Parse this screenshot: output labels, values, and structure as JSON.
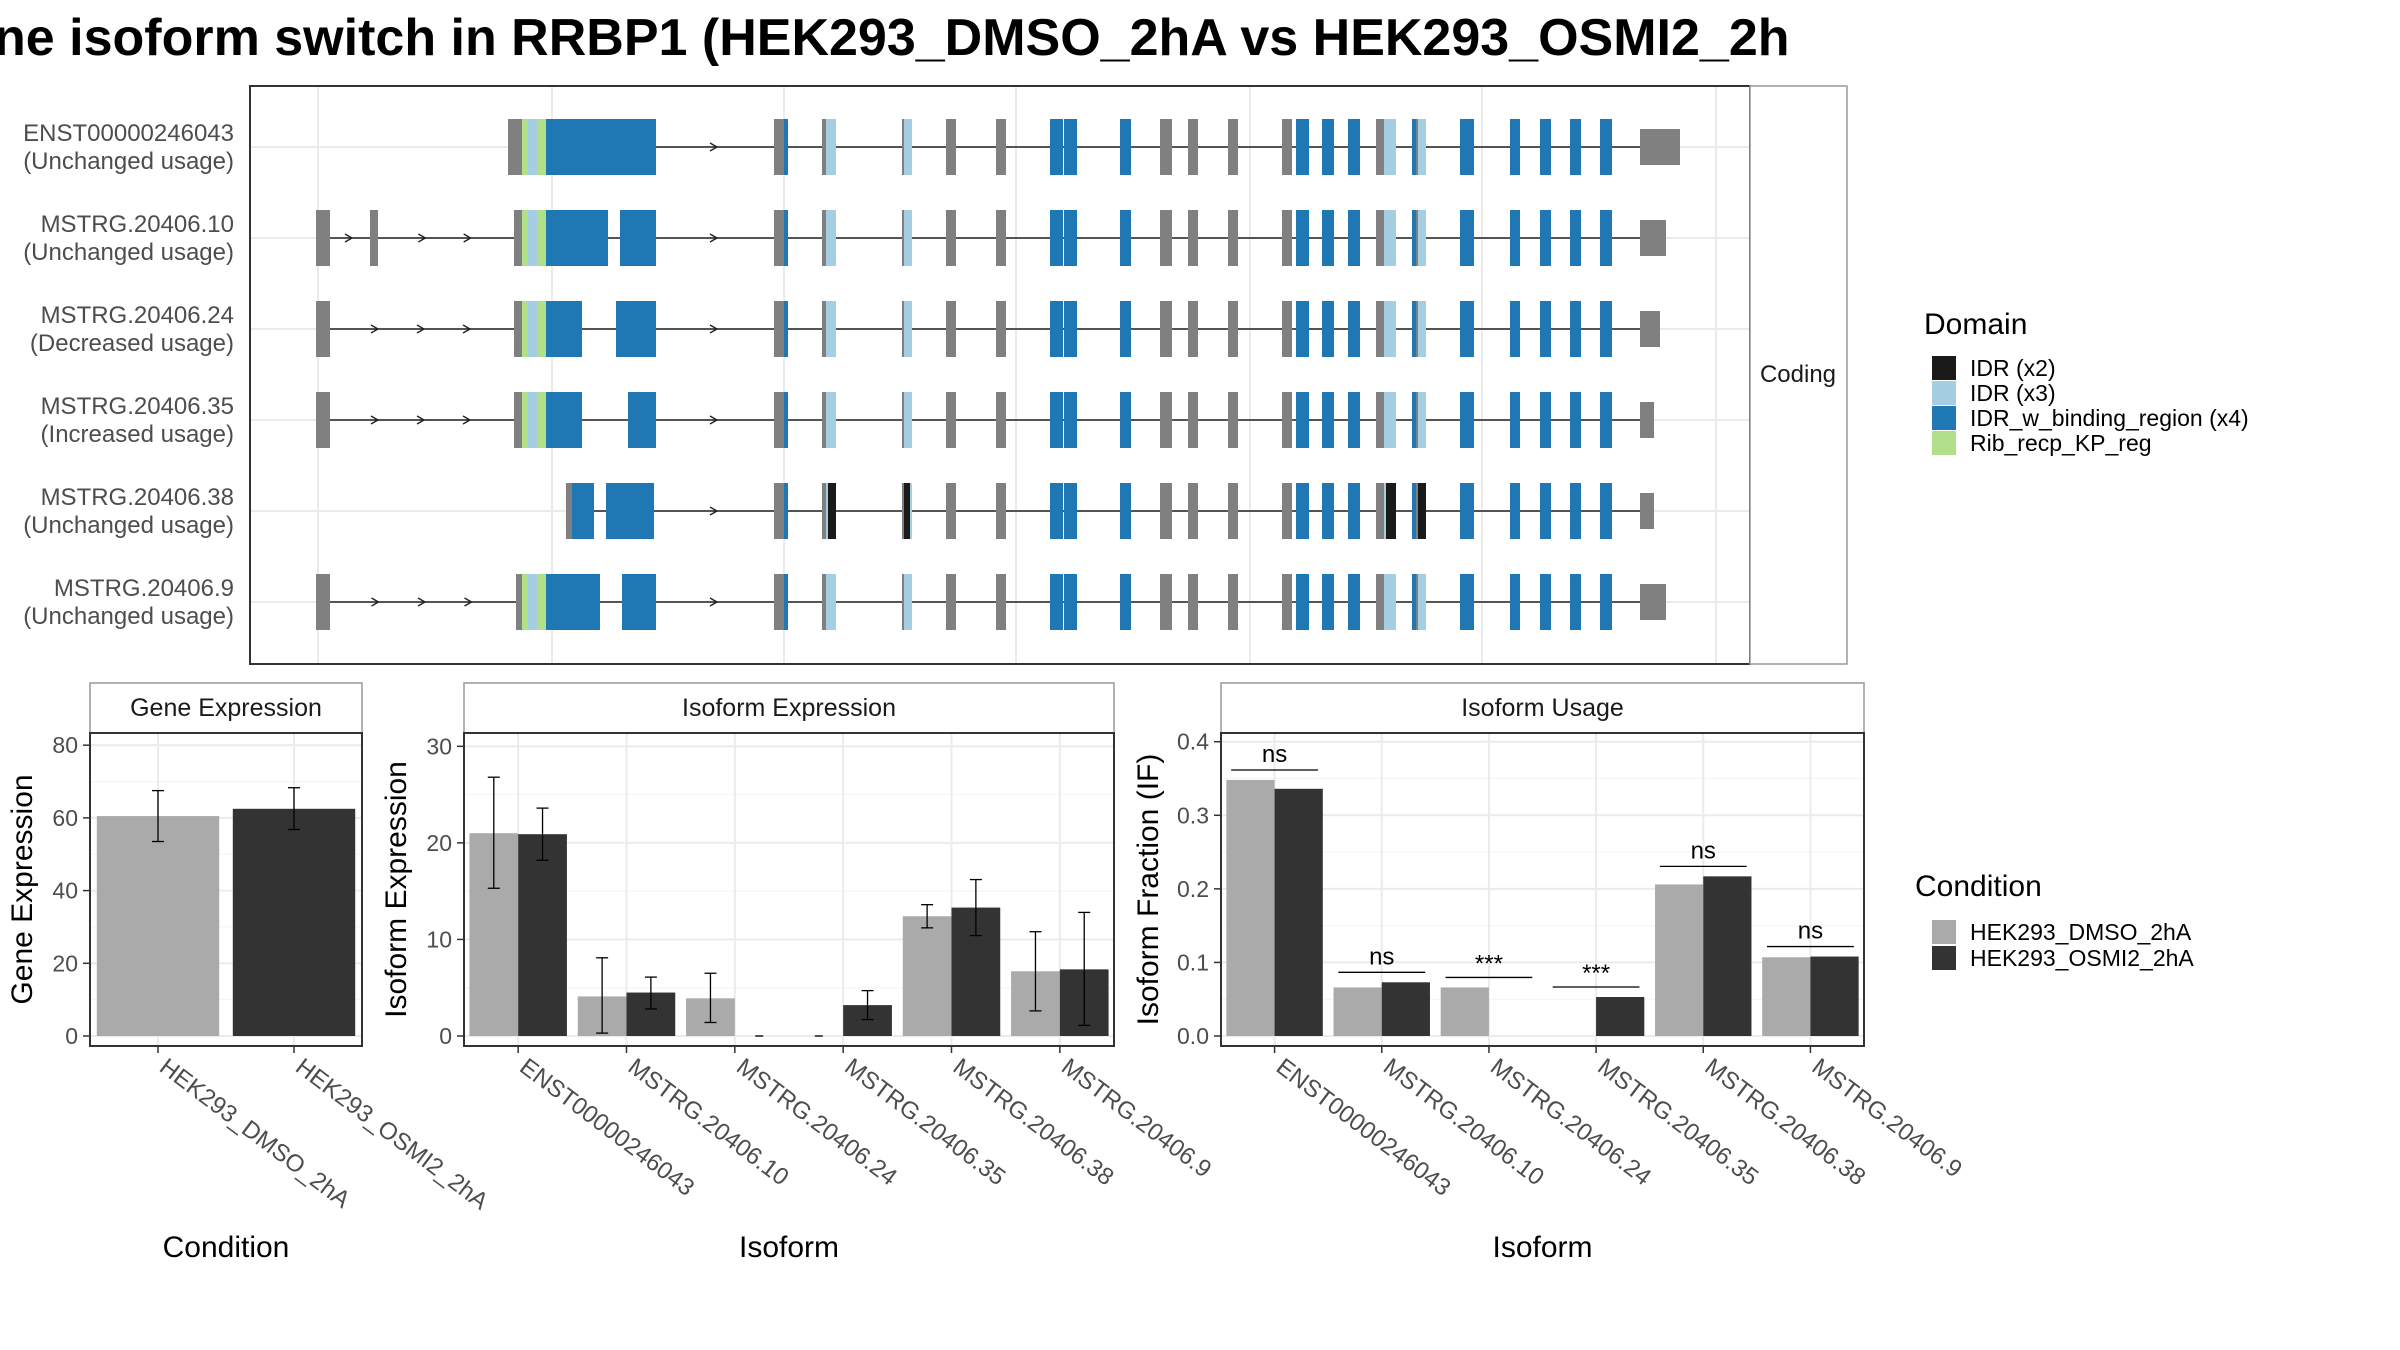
{
  "title": "ne isoform switch in RRBP1 (HEK293_DMSO_2hA vs HEK293_OSMI2_2h",
  "colors": {
    "dmso": "#aaaaaa",
    "osmi": "#333333",
    "exon_plain": "#808080",
    "idr_x2": "#1a1a1a",
    "idr_x3": "#a6cee3",
    "idr_binding": "#1f78b4",
    "rib_kp": "#b2df8a",
    "grid": "#ebebeb",
    "panel_border": "#333333"
  },
  "chart_data": [
    {
      "type": "gene-structure",
      "strip_label": "Coding",
      "legend": {
        "title": "Domain",
        "items": [
          {
            "label": "IDR (x2)",
            "color": "#1a1a1a"
          },
          {
            "label": "IDR (x3)",
            "color": "#a6cee3"
          },
          {
            "label": "IDR_w_binding_region (x4)",
            "color": "#1f78b4"
          },
          {
            "label": "Rib_recp_KP_reg",
            "color": "#b2df8a"
          }
        ]
      },
      "isoforms": [
        {
          "id": "ENST00000246043",
          "status": "(Unchanged usage)"
        },
        {
          "id": "MSTRG.20406.10",
          "status": "(Unchanged usage)"
        },
        {
          "id": "MSTRG.20406.24",
          "status": "(Decreased usage)"
        },
        {
          "id": "MSTRG.20406.35",
          "status": "(Increased usage)"
        },
        {
          "id": "MSTRG.20406.38",
          "status": "(Unchanged usage)"
        },
        {
          "id": "MSTRG.20406.9",
          "status": "(Unchanged usage)"
        }
      ]
    },
    {
      "type": "bar",
      "title": "Gene Expression",
      "xlabel": "Condition",
      "ylabel": "Gene Expression",
      "ylim": [
        0,
        85
      ],
      "yticks": [
        0,
        20,
        40,
        60,
        80
      ],
      "categories": [
        "HEK293_DMSO_2hA",
        "HEK293_OSMI2_2hA"
      ],
      "values": [
        60.5,
        62.5
      ],
      "errors": [
        [
          53.5,
          67.5
        ],
        [
          56.8,
          68.3
        ]
      ]
    },
    {
      "type": "bar",
      "title": "Isoform Expression",
      "xlabel": "Isoform",
      "ylabel": "Isoform Expression",
      "ylim": [
        0,
        32
      ],
      "yticks": [
        0,
        10,
        20,
        30
      ],
      "categories": [
        "ENST00000246043",
        "MSTRG.20406.10",
        "MSTRG.20406.24",
        "MSTRG.20406.35",
        "MSTRG.20406.38",
        "MSTRG.20406.9"
      ],
      "series": [
        {
          "name": "HEK293_DMSO_2hA",
          "values": [
            21.0,
            4.1,
            3.9,
            0.0,
            12.4,
            6.7
          ],
          "errors": [
            [
              15.3,
              26.8
            ],
            [
              0.3,
              8.1
            ],
            [
              1.4,
              6.5
            ],
            [
              0.0,
              0.0
            ],
            [
              11.2,
              13.6
            ],
            [
              2.6,
              10.8
            ]
          ]
        },
        {
          "name": "HEK293_OSMI2_2hA",
          "values": [
            20.9,
            4.5,
            0.0,
            3.2,
            13.3,
            6.9
          ],
          "errors": [
            [
              18.2,
              23.6
            ],
            [
              2.8,
              6.1
            ],
            [
              0.0,
              0.0
            ],
            [
              1.7,
              4.7
            ],
            [
              10.4,
              16.2
            ],
            [
              1.1,
              12.8
            ]
          ]
        }
      ]
    },
    {
      "type": "bar",
      "title": "Isoform Usage",
      "xlabel": "Isoform",
      "ylabel": "Isoform Fraction (IF)",
      "ylim": [
        0,
        0.42
      ],
      "yticks": [
        0.0,
        0.1,
        0.2,
        0.3,
        0.4
      ],
      "ytick_labels": [
        "0.0",
        "0.1",
        "0.2",
        "0.3",
        "0.4"
      ],
      "categories": [
        "ENST00000246043",
        "MSTRG.20406.10",
        "MSTRG.20406.24",
        "MSTRG.20406.35",
        "MSTRG.20406.38",
        "MSTRG.20406.9"
      ],
      "series": [
        {
          "name": "HEK293_DMSO_2hA",
          "values": [
            0.348,
            0.066,
            0.066,
            0.0,
            0.206,
            0.107
          ]
        },
        {
          "name": "HEK293_OSMI2_2hA",
          "values": [
            0.336,
            0.073,
            0.0,
            0.053,
            0.217,
            0.108
          ]
        }
      ],
      "significance": [
        "ns",
        "ns",
        "***",
        "***",
        "ns",
        "ns"
      ],
      "legend": {
        "title": "Condition",
        "items": [
          "HEK293_DMSO_2hA",
          "HEK293_OSMI2_2hA"
        ]
      }
    }
  ]
}
